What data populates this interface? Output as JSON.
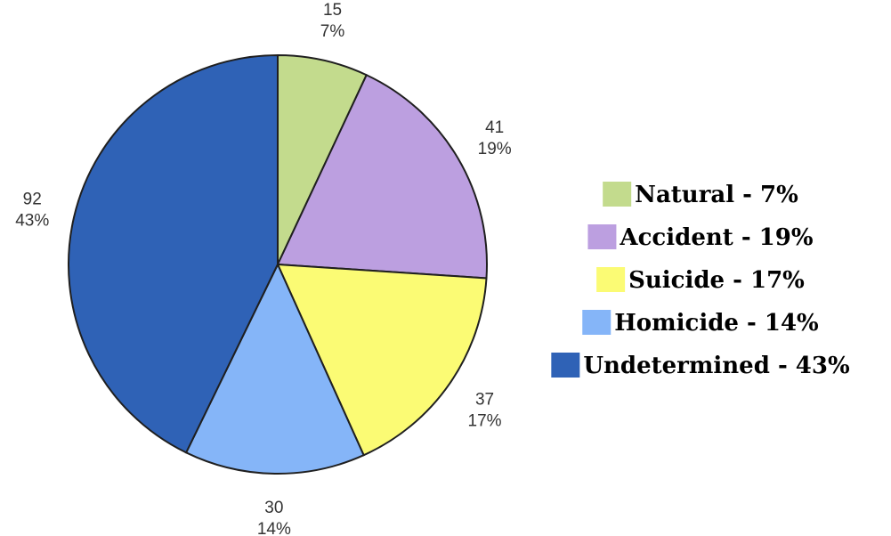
{
  "chart_data": {
    "type": "pie",
    "title": "",
    "slices": [
      {
        "name": "Natural",
        "value": 15,
        "percent_label": "7%",
        "legend": "Natural - 7%",
        "color": "#c3db8d"
      },
      {
        "name": "Accident",
        "value": 41,
        "percent_label": "19%",
        "legend": "Accident - 19%",
        "color": "#bc9fe0"
      },
      {
        "name": "Suicide",
        "value": 37,
        "percent_label": "17%",
        "legend": "Suicide - 17%",
        "color": "#fbfb74"
      },
      {
        "name": "Homicide",
        "value": 30,
        "percent_label": "14%",
        "legend": "Homicide - 14%",
        "color": "#85b5f8"
      },
      {
        "name": "Undetermined",
        "value": 92,
        "percent_label": "43%",
        "legend": "Undetermined - 43%",
        "color": "#2f62b6"
      }
    ],
    "start_angle": "12 o'clock",
    "direction": "clockwise",
    "legend_position": "right"
  }
}
